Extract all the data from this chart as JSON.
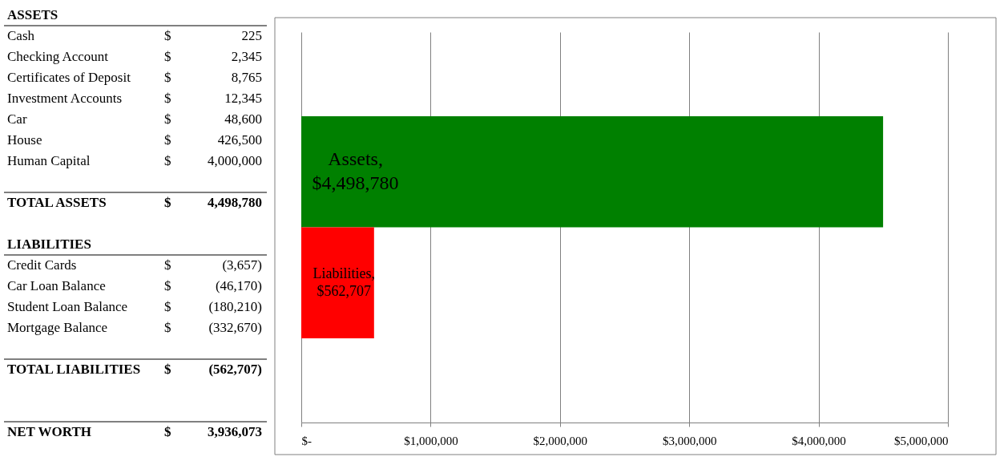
{
  "chart_data": [
    {
      "type": "other",
      "categories": [
        "ASSETS",
        "Cash",
        "Checking Account",
        "Certificates of Deposit",
        "Investment Accounts",
        "Car",
        "House",
        "Human Capital",
        null,
        "TOTAL ASSETS",
        null,
        "LIABILITIES",
        "Credit Cards",
        "Car Loan Balance",
        "Student Loan Balance",
        "Mortgage Balance",
        null,
        "TOTAL LIABILITIES",
        null,
        null,
        "NET WORTH"
      ],
      "cell_labels": [
        [
          null,
          null
        ],
        [
          "$",
          "225"
        ],
        [
          "$",
          "2,345"
        ],
        [
          "$",
          "8,765"
        ],
        [
          "$",
          "12,345"
        ],
        [
          "$",
          "48,600"
        ],
        [
          "$",
          "426,500"
        ],
        [
          "$",
          "4,000,000"
        ],
        [
          null,
          null
        ],
        [
          "$",
          "4,498,780"
        ],
        [
          null,
          null
        ],
        [
          null,
          null
        ],
        [
          "$",
          "(3,657)"
        ],
        [
          "$",
          "(46,170)"
        ],
        [
          "$",
          "(180,210)"
        ],
        [
          "$",
          "(332,670)"
        ],
        [
          null,
          null
        ],
        [
          "$",
          "(562,707)"
        ],
        [
          null,
          null
        ],
        [
          null,
          null
        ],
        [
          "$",
          "3,936,073"
        ]
      ]
    },
    {
      "type": "bar",
      "orientation": "horizontal",
      "categories": [
        null
      ],
      "series": [
        {
          "name": "Assets,",
          "color": "#008000",
          "values": [
            4498780
          ],
          "value_labels": [
            "$4,498,780"
          ]
        },
        {
          "name": "Liabilities,",
          "color": "#ff0000",
          "values": [
            562707
          ],
          "value_labels": [
            "$562,707"
          ]
        }
      ],
      "xlim": [
        0,
        5000000
      ],
      "xticks": [
        {
          "value": 0,
          "label": "$-"
        },
        {
          "value": 1000000,
          "label": "$1,000,000"
        },
        {
          "value": 2000000,
          "label": "$2,000,000"
        },
        {
          "value": 3000000,
          "label": "$3,000,000"
        },
        {
          "value": 4000000,
          "label": "$4,000,000"
        },
        {
          "value": 5000000,
          "label": "$5,000,000"
        }
      ],
      "grid": "x",
      "legend": false
    }
  ]
}
